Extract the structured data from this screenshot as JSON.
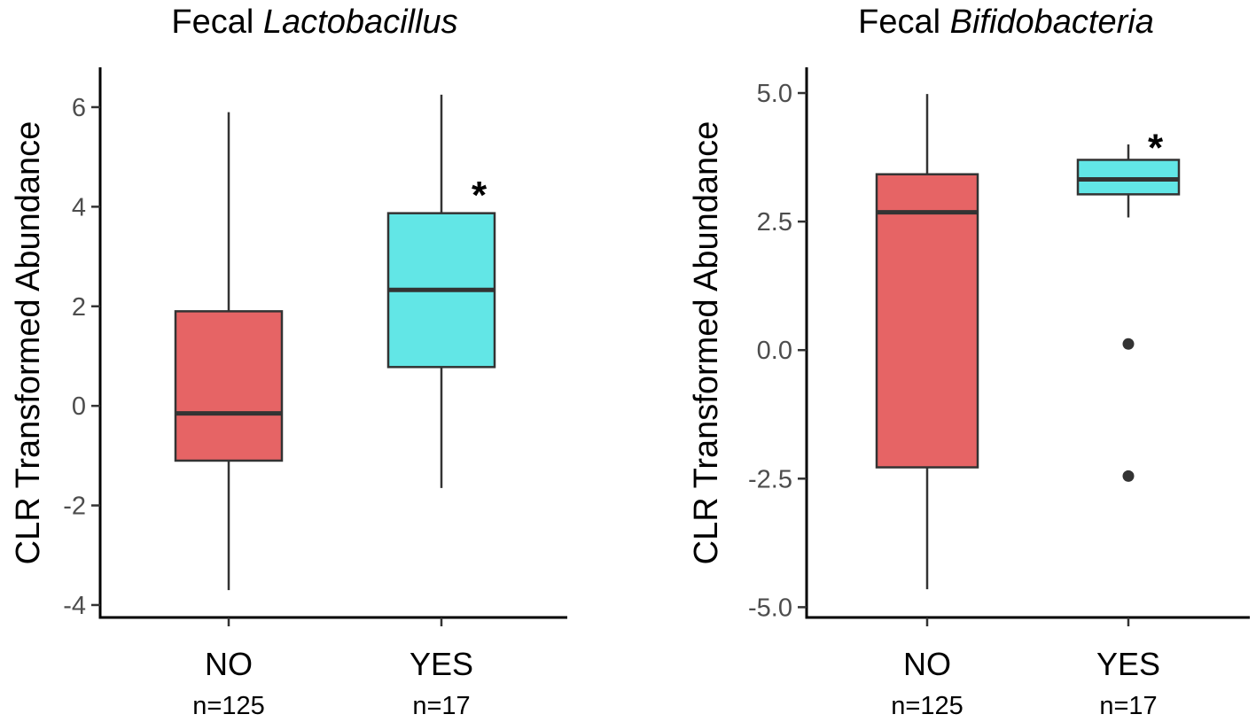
{
  "colors": {
    "no": "#e66465",
    "yes": "#62e6e6",
    "stroke": "#333333",
    "outlier": "#333333"
  },
  "chart_data": [
    {
      "type": "boxplot",
      "title_prefix": "Fecal ",
      "title_italic": "Lactobacillus",
      "ylabel": "CLR Transformed Abundance",
      "ylim": [
        -4.25,
        6.8
      ],
      "yticks": [
        {
          "value": -4,
          "label": "-4"
        },
        {
          "value": -2,
          "label": "-2"
        },
        {
          "value": 0,
          "label": "0"
        },
        {
          "value": 2,
          "label": "2"
        },
        {
          "value": 4,
          "label": "4"
        },
        {
          "value": 6,
          "label": "6"
        }
      ],
      "groups": [
        {
          "name": "NO",
          "n_label": "n=125",
          "color_key": "no",
          "min": -3.7,
          "q1": -1.1,
          "median": -0.15,
          "q3": 1.9,
          "max": 5.9,
          "outliers": [],
          "significance": ""
        },
        {
          "name": "YES",
          "n_label": "n=17",
          "color_key": "yes",
          "min": -1.65,
          "q1": 0.78,
          "median": 2.33,
          "q3": 3.87,
          "max": 6.25,
          "outliers": [],
          "significance": "*",
          "sig_value": 4.4
        }
      ]
    },
    {
      "type": "boxplot",
      "title_prefix": "Fecal ",
      "title_italic": "Bifidobacteria",
      "ylabel": "CLR Transformed Abundance",
      "ylim": [
        -5.2,
        5.5
      ],
      "yticks": [
        {
          "value": -5,
          "label": "-5.0"
        },
        {
          "value": -2.5,
          "label": "-2.5"
        },
        {
          "value": 0,
          "label": "0.0"
        },
        {
          "value": 2.5,
          "label": "2.5"
        },
        {
          "value": 5,
          "label": "5.0"
        }
      ],
      "groups": [
        {
          "name": "NO",
          "n_label": "n=125",
          "color_key": "no",
          "min": -4.65,
          "q1": -2.28,
          "median": 2.68,
          "q3": 3.42,
          "max": 4.98,
          "outliers": [],
          "significance": ""
        },
        {
          "name": "YES",
          "n_label": "n=17",
          "color_key": "yes",
          "min": 2.58,
          "q1": 3.03,
          "median": 3.32,
          "q3": 3.7,
          "max": 4.0,
          "outliers": [
            0.12,
            -2.45
          ],
          "significance": "*",
          "sig_value": 4.1
        }
      ]
    }
  ]
}
